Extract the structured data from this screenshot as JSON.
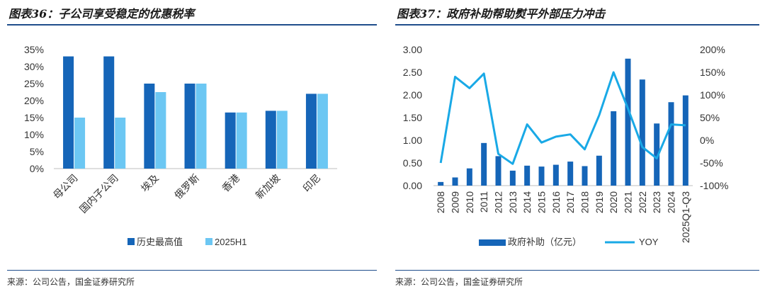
{
  "left": {
    "title": "图表36：子公司享受稳定的优惠税率",
    "source": "来源：公司公告，国金证券研究所"
  },
  "right": {
    "title": "图表37：政府补助帮助熨平外部压力冲击",
    "source": "来源：公司公告，国金证券研究所"
  },
  "chart_data": [
    {
      "type": "bar",
      "categories": [
        "母公司",
        "国内子公司",
        "埃及",
        "俄罗斯",
        "香港",
        "新加坡",
        "印尼"
      ],
      "series": [
        {
          "name": "历史最高值",
          "values": [
            33,
            33,
            25,
            25,
            16.5,
            17,
            22
          ],
          "color": "#1565b8"
        },
        {
          "name": "2025H1",
          "values": [
            15,
            15,
            22.5,
            25,
            16.5,
            17,
            22
          ],
          "color": "#6cc7f3"
        }
      ],
      "yticks": [
        "0%",
        "5%",
        "10%",
        "15%",
        "20%",
        "25%",
        "30%",
        "35%"
      ],
      "ylim": [
        0,
        35
      ],
      "grid": false,
      "legend": "bottom"
    },
    {
      "type": "bar+line",
      "categories": [
        "2008",
        "2009",
        "2010",
        "2011",
        "2012",
        "2013",
        "2014",
        "2015",
        "2016",
        "2017",
        "2018",
        "2019",
        "2020",
        "2021",
        "2022",
        "2023",
        "2024",
        "2025Q1-Q3"
      ],
      "series": [
        {
          "name": "政府补助（亿元）",
          "type": "bar",
          "axis": "left",
          "values": [
            0.08,
            0.18,
            0.38,
            0.94,
            0.65,
            0.33,
            0.44,
            0.42,
            0.46,
            0.53,
            0.43,
            0.66,
            1.64,
            2.8,
            2.34,
            1.37,
            1.84,
            1.99
          ],
          "color": "#1565b8"
        },
        {
          "name": "YOY",
          "type": "line",
          "axis": "right",
          "values": [
            -50,
            140,
            115,
            147,
            -30,
            -52,
            35,
            -5,
            8,
            13,
            -20,
            55,
            150,
            70,
            -15,
            -40,
            35,
            33
          ],
          "color": "#19a9e6"
        }
      ],
      "yticks_left": [
        "0.00",
        "0.50",
        "1.00",
        "1.50",
        "2.00",
        "2.50",
        "3.00"
      ],
      "ylim_left": [
        0,
        3
      ],
      "yticks_right": [
        "-100%",
        "-50%",
        "0%",
        "50%",
        "100%",
        "150%",
        "200%"
      ],
      "ylim_right": [
        -100,
        200
      ],
      "grid": false,
      "legend": "bottom"
    }
  ]
}
